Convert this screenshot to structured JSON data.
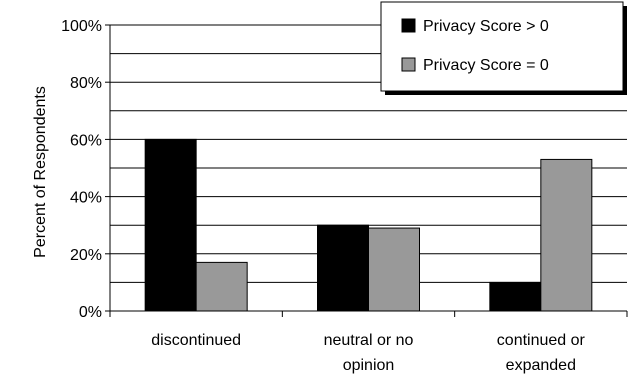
{
  "chart_data": {
    "type": "bar",
    "ylabel": "Percent of Respondents",
    "xlabel": "",
    "ylim": [
      0,
      100
    ],
    "yticks": [
      0,
      20,
      40,
      60,
      80,
      100
    ],
    "ytick_labels": [
      "0%",
      "20%",
      "40%",
      "60%",
      "80%",
      "100%"
    ],
    "grid": true,
    "legend_position": "top-right",
    "categories": [
      [
        "discontinued"
      ],
      [
        "neutral or no",
        "opinion"
      ],
      [
        "continued or",
        "expanded"
      ]
    ],
    "series": [
      {
        "name": "Privacy Score > 0",
        "color": "#000000",
        "values": [
          60,
          30,
          10
        ]
      },
      {
        "name": "Privacy Score = 0",
        "color": "#999999",
        "values": [
          17,
          29,
          53
        ]
      }
    ]
  }
}
